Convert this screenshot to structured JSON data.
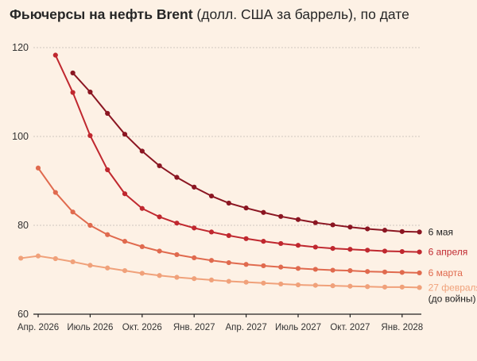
{
  "title": {
    "bold": "Фьючерсы на нефть Brent",
    "rest": "(долл. США за баррель), по дате"
  },
  "chart_data": {
    "type": "line",
    "ylim": [
      60,
      120
    ],
    "yticks": [
      60,
      80,
      100,
      120
    ],
    "grid": true,
    "x_tick_labels": [
      "Апр. 2026",
      "Июль 2026",
      "Окт. 2026",
      "Янв. 2027",
      "Апр. 2027",
      "Июль 2027",
      "Окт. 2027",
      "Янв. 2028"
    ],
    "x_tick_months": [
      "2026-04",
      "2026-07",
      "2026-10",
      "2027-01",
      "2027-04",
      "2027-07",
      "2027-10",
      "2028-01"
    ],
    "series": [
      {
        "name": "27 февраля",
        "note": "(до войны)",
        "color": "#f0a17a",
        "start_month": "2026-03",
        "values": [
          72.6,
          73.1,
          72.5,
          71.8,
          71.0,
          70.4,
          69.8,
          69.2,
          68.7,
          68.3,
          68.0,
          67.7,
          67.4,
          67.2,
          67.0,
          66.8,
          66.6,
          66.5,
          66.4,
          66.3,
          66.2,
          66.1,
          66.1,
          66.0
        ]
      },
      {
        "name": "6 марта",
        "color": "#e06a4e",
        "start_month": "2026-04",
        "values": [
          92.9,
          87.4,
          83.0,
          80.0,
          77.9,
          76.4,
          75.2,
          74.2,
          73.4,
          72.7,
          72.1,
          71.6,
          71.2,
          70.9,
          70.6,
          70.3,
          70.1,
          69.9,
          69.8,
          69.6,
          69.5,
          69.4,
          69.3
        ]
      },
      {
        "name": "6 апреля",
        "color": "#c0282f",
        "start_month": "2026-05",
        "values": [
          118.3,
          109.9,
          100.2,
          92.5,
          87.1,
          83.8,
          81.9,
          80.5,
          79.4,
          78.5,
          77.7,
          77.0,
          76.4,
          75.9,
          75.5,
          75.1,
          74.8,
          74.6,
          74.4,
          74.2,
          74.1,
          74.0
        ]
      },
      {
        "name": "6 мая",
        "color": "#8b1622",
        "start_month": "2026-06",
        "values": [
          114.3,
          110.0,
          105.2,
          100.5,
          96.7,
          93.4,
          90.8,
          88.6,
          86.6,
          85.0,
          83.9,
          82.9,
          82.0,
          81.3,
          80.6,
          80.1,
          79.6,
          79.2,
          78.9,
          78.6,
          78.5
        ]
      }
    ]
  }
}
